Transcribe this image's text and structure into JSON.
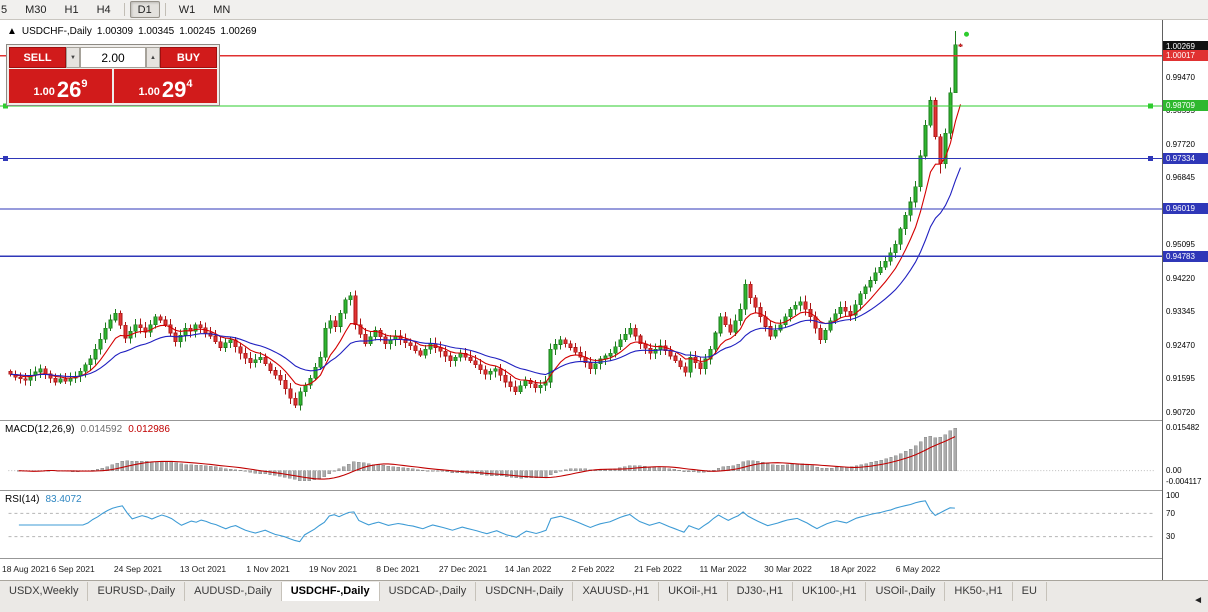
{
  "toolbar": {
    "buttons": [
      "5",
      "M30",
      "H1",
      "H4",
      "D1",
      "W1",
      "MN"
    ],
    "active": "D1",
    "separators_after": [
      "H4",
      "D1"
    ]
  },
  "chart_header": {
    "direction_icon": "▲",
    "symbol": "USDCHF-,Daily",
    "open": "1.00309",
    "high": "1.00345",
    "low": "1.00245",
    "close": "1.00269"
  },
  "trade_panel": {
    "sell_label": "SELL",
    "buy_label": "BUY",
    "volume": "2.00",
    "spinner_down": "▼",
    "spinner_up": "▲",
    "sell_price": {
      "prefix": "1.00",
      "big": "26",
      "sup": "9"
    },
    "buy_price": {
      "prefix": "1.00",
      "big": "29",
      "sup": "4"
    }
  },
  "price_axis": {
    "badges": [
      {
        "text": "1.00269",
        "bg": "#111111",
        "price": 1.00269
      },
      {
        "text": "1.00017",
        "bg": "#e03131",
        "price": 1.00017
      },
      {
        "text": "0.98709",
        "bg": "#2eb82e",
        "price": 0.98709
      },
      {
        "text": "0.97334",
        "bg": "#2f37b8",
        "price": 0.97334
      },
      {
        "text": "0.96019",
        "bg": "#2f37b8",
        "price": 0.96019
      },
      {
        "text": "0.94783",
        "bg": "#2f37b8",
        "price": 0.94783
      }
    ]
  },
  "macd_panel": {
    "title": "MACD(12,26,9)",
    "main_value": "0.014592",
    "signal_value": "0.012986",
    "axis_labels": {
      "top": "0.015482",
      "zero": "0.00",
      "bottom": "-0.004117"
    }
  },
  "rsi_panel": {
    "title": "RSI(14)",
    "value": "83.4072",
    "axis_labels": [
      "100",
      "70",
      "30"
    ],
    "levels": [
      70,
      30
    ]
  },
  "tab_bar": {
    "tabs": [
      "USDX,Weekly",
      "EURUSD-,Daily",
      "AUDUSD-,Daily",
      "USDCHF-,Daily",
      "USDCAD-,Daily",
      "USDCNH-,Daily",
      "XAUUSD-,H1",
      "UKOil-,H1",
      "DJ30-,H1",
      "UK100-,H1",
      "USOil-,Daily",
      "HK50-,H1",
      "EU"
    ],
    "active": "USDCHF-,Daily",
    "scroll_left": "◄"
  },
  "chart_data": {
    "type": "candlestick",
    "title": "USDCHF-,Daily",
    "ylim": [
      0.9056,
      1.009
    ],
    "price_tick_labels": [
      "0.99470",
      "0.98595",
      "0.97720",
      "0.96845",
      "0.95970",
      "0.95095",
      "0.94220",
      "0.93345",
      "0.92470",
      "0.91595",
      "0.90720"
    ],
    "x_tick_labels": [
      "18 Aug 2021",
      "6 Sep 2021",
      "24 Sep 2021",
      "13 Oct 2021",
      "1 Nov 2021",
      "19 Nov 2021",
      "8 Dec 2021",
      "27 Dec 2021",
      "14 Jan 2022",
      "2 Feb 2022",
      "21 Feb 2022",
      "11 Mar 2022",
      "30 Mar 2022",
      "18 Apr 2022",
      "6 May 2022"
    ],
    "bars_per_label": 13,
    "levels": [
      {
        "price": 1.00017,
        "color": "#e03131",
        "handles": false
      },
      {
        "price": 0.98709,
        "color": "#2ecc2e",
        "handles": true
      },
      {
        "price": 0.97334,
        "color": "#2f37b8",
        "handles": true
      },
      {
        "price": 0.96019,
        "color": "#2f37b8",
        "handles": false
      },
      {
        "price": 0.94783,
        "color": "#2f37b8",
        "handles": false
      }
    ],
    "closes": [
      0.917,
      0.9162,
      0.9158,
      0.9155,
      0.9168,
      0.9176,
      0.9185,
      0.9172,
      0.916,
      0.915,
      0.9158,
      0.9152,
      0.916,
      0.9165,
      0.9178,
      0.9195,
      0.921,
      0.9235,
      0.9262,
      0.929,
      0.9312,
      0.933,
      0.9298,
      0.9265,
      0.9282,
      0.93,
      0.9292,
      0.928,
      0.93,
      0.932,
      0.9312,
      0.93,
      0.9278,
      0.9255,
      0.9272,
      0.929,
      0.9282,
      0.93,
      0.9292,
      0.9278,
      0.927,
      0.9255,
      0.924,
      0.9252,
      0.926,
      0.9242,
      0.9225,
      0.9212,
      0.92,
      0.9208,
      0.9215,
      0.9198,
      0.918,
      0.9168,
      0.9155,
      0.9132,
      0.9108,
      0.909,
      0.9125,
      0.9142,
      0.916,
      0.9188,
      0.9215,
      0.929,
      0.931,
      0.9295,
      0.933,
      0.9365,
      0.9375,
      0.93,
      0.9275,
      0.925,
      0.9268,
      0.9285,
      0.9268,
      0.925,
      0.926,
      0.927,
      0.9262,
      0.9252,
      0.9245,
      0.9232,
      0.922,
      0.9235,
      0.925,
      0.924,
      0.923,
      0.9218,
      0.9205,
      0.9215,
      0.9225,
      0.9215,
      0.9205,
      0.9195,
      0.9182,
      0.917,
      0.9178,
      0.9185,
      0.9168,
      0.915,
      0.9138,
      0.9125,
      0.914,
      0.9155,
      0.9145,
      0.9135,
      0.9142,
      0.915,
      0.9235,
      0.9248,
      0.926,
      0.925,
      0.924,
      0.9228,
      0.9215,
      0.92,
      0.9185,
      0.9198,
      0.921,
      0.9218,
      0.9225,
      0.9242,
      0.926,
      0.9275,
      0.929,
      0.927,
      0.925,
      0.9238,
      0.9225,
      0.9235,
      0.9245,
      0.9232,
      0.9218,
      0.9205,
      0.919,
      0.9175,
      0.9215,
      0.92,
      0.9185,
      0.921,
      0.9235,
      0.9278,
      0.932,
      0.93,
      0.928,
      0.931,
      0.934,
      0.9405,
      0.937,
      0.9345,
      0.932,
      0.9295,
      0.927,
      0.9285,
      0.93,
      0.932,
      0.934,
      0.935,
      0.936,
      0.934,
      0.932,
      0.929,
      0.926,
      0.9285,
      0.931,
      0.9328,
      0.9345,
      0.9335,
      0.9325,
      0.9352,
      0.938,
      0.9398,
      0.9415,
      0.9435,
      0.945,
      0.9465,
      0.9488,
      0.951,
      0.955,
      0.9585,
      0.962,
      0.966,
      0.974,
      0.982,
      0.9885,
      0.979,
      0.972,
      0.98,
      0.9905,
      1.0031,
      1.00269
    ],
    "overrides": {
      "57": {
        "l": 0.9082
      },
      "147": {
        "h": 0.9418
      },
      "184": {
        "h": 0.9895
      },
      "186": {
        "l": 0.9695
      },
      "189": {
        "h": 1.0067,
        "l": 0.9915
      },
      "190": {
        "o": 1.00309,
        "h": 1.00345,
        "l": 1.00245,
        "c": 1.00269
      }
    },
    "ma_fast_period": 8,
    "ma_slow_period": 20,
    "macd": {
      "fast": 12,
      "slow": 26,
      "signal": 9,
      "last_main": 0.014592,
      "last_signal": 0.012986
    },
    "rsi": {
      "period": 14,
      "last": 83.4072,
      "levels": [
        70,
        30
      ]
    },
    "marker_dot": {
      "price": 1.0058,
      "color": "#2ecc2e"
    },
    "colors": {
      "up": "#2eb82e",
      "up_border": "#1d7a1d",
      "down": "#e43434",
      "down_border": "#a81414",
      "ma_fast": "#d40000",
      "ma_slow": "#2020c0",
      "macd_hist": "#ababab",
      "macd_hist_border": "#8c8c8c",
      "macd_signal": "#c00000",
      "rsi_line": "#3d9bd5"
    }
  }
}
